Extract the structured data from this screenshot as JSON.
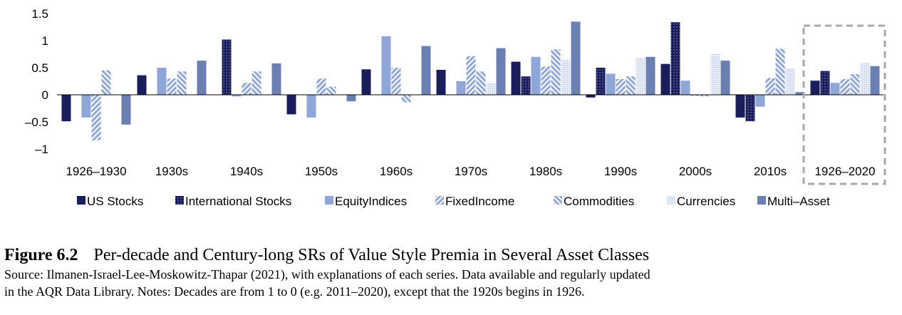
{
  "chart_data": {
    "type": "bar",
    "categories": [
      "1926–1930",
      "1930s",
      "1940s",
      "1950s",
      "1960s",
      "1970s",
      "1980s",
      "1990s",
      "2000s",
      "2010s",
      "1926–2020"
    ],
    "yticks": [
      "1.5",
      "1",
      "0.5",
      "0",
      "–0.5",
      "–1"
    ],
    "ylim": [
      -1,
      1.5
    ],
    "highlighted_category": "1926–2020",
    "legend_position": "bottom",
    "series": [
      {
        "name": "US Stocks",
        "color": "#1a1f5c",
        "pattern": "solid-dark",
        "values": [
          -0.49,
          0.36,
          null,
          -0.36,
          0.47,
          0.46,
          0.61,
          -0.05,
          0.57,
          -0.42,
          0.26
        ]
      },
      {
        "name": "International Stocks",
        "color": "#1a1f5c",
        "pattern": "dotted-dark",
        "values": [
          null,
          null,
          1.02,
          null,
          null,
          null,
          0.34,
          0.5,
          1.34,
          -0.49,
          0.44
        ]
      },
      {
        "name": "EquityIndices",
        "color": "#8ea6d8",
        "pattern": "solid-light",
        "values": [
          -0.42,
          0.5,
          -0.03,
          -0.42,
          1.08,
          0.25,
          0.7,
          0.39,
          0.26,
          -0.22,
          0.22
        ]
      },
      {
        "name": "FixedIncome",
        "color": "#8ea6d8",
        "pattern": "hatched",
        "values": [
          -0.84,
          0.3,
          0.22,
          0.3,
          0.5,
          0.71,
          0.52,
          0.29,
          -0.02,
          0.31,
          0.29
        ]
      },
      {
        "name": "Commodities",
        "color": "#8ea6d8",
        "pattern": "hatched-reverse",
        "values": [
          0.45,
          0.43,
          0.43,
          0.15,
          -0.14,
          0.43,
          0.84,
          0.34,
          -0.03,
          0.85,
          0.38
        ]
      },
      {
        "name": "Currencies",
        "color": "#dbe4f5",
        "pattern": "dotted-pale",
        "values": [
          null,
          null,
          null,
          null,
          null,
          0.22,
          0.65,
          0.68,
          0.75,
          0.49,
          0.59
        ]
      },
      {
        "name": "Multi–Asset",
        "color": "#6b7fb3",
        "pattern": "solid-mid",
        "values": [
          -0.55,
          0.63,
          0.58,
          -0.12,
          0.9,
          0.86,
          1.35,
          0.7,
          0.63,
          0.05,
          0.53
        ]
      }
    ]
  },
  "caption": {
    "figure_number": "Figure 6.2",
    "title": "Per-decade and Century-long SRs of Value Style Premia in Several Asset Classes",
    "source_line_1": "Source: Ilmanen-Israel-Lee-Moskowitz-Thapar (2021), with explanations of each series. Data available and regularly updated",
    "source_line_2": "in the AQR Data Library. Notes: Decades are from 1 to 0 (e.g. 2011–2020), except that the 1920s begins in 1926."
  }
}
